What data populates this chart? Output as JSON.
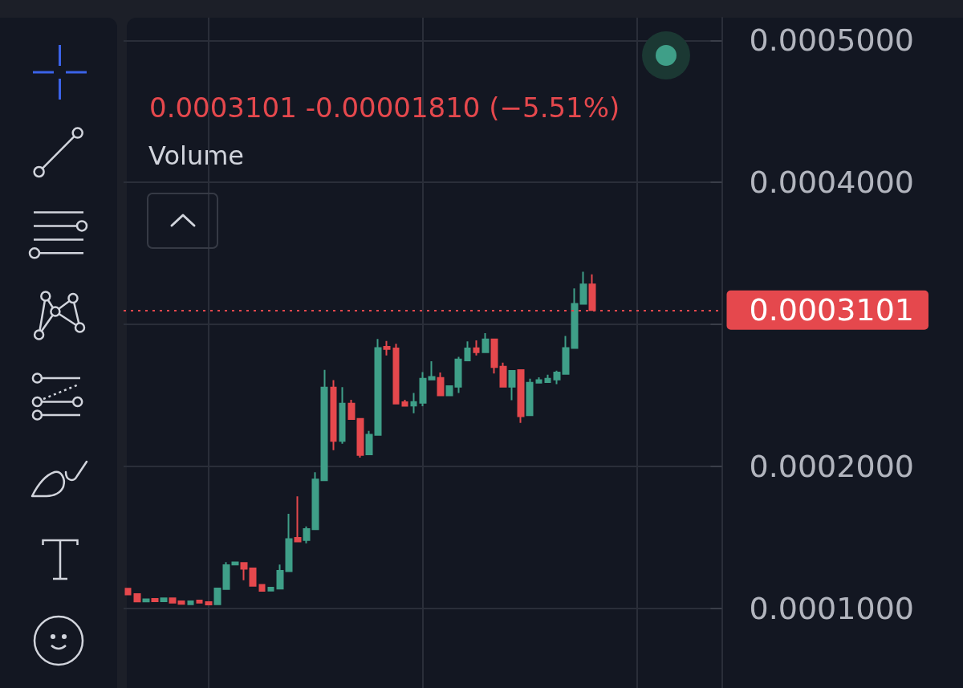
{
  "chart_data": {
    "type": "candlestick",
    "subtitle": "0.0003101 -0.00001810 (−5.51%)",
    "annotations": [
      "Volume"
    ],
    "categories": [
      null,
      null,
      null,
      null,
      null,
      null,
      null,
      null,
      null,
      null,
      null,
      null,
      null,
      null,
      null,
      null,
      null,
      null,
      null,
      null,
      null,
      null,
      null,
      null,
      null,
      null,
      null,
      null,
      null,
      null,
      null,
      null,
      null,
      null,
      null,
      null,
      null,
      null,
      null,
      null,
      null,
      null,
      null,
      null,
      null,
      null,
      null,
      null,
      null,
      null,
      null,
      null,
      null,
      null,
      null,
      null,
      null,
      null,
      null,
      null,
      null,
      null,
      null,
      null,
      null,
      null,
      null
    ],
    "ohlc": [
      [
        0.000114,
        0.000114,
        0.0001098,
        0.0001098
      ],
      [
        0.0001102,
        0.0001102,
        0.0001044,
        0.0001049
      ],
      [
        0.0001049,
        0.0001068,
        0.0001047,
        0.0001064
      ],
      [
        0.0001068,
        0.0001073,
        0.0001051,
        0.0001051
      ],
      [
        0.0001051,
        0.0001072,
        0.0001051,
        0.0001072
      ],
      [
        0.0001072,
        0.0001072,
        0.0001038,
        0.000104
      ],
      [
        0.0001051,
        0.0001051,
        0.0001026,
        0.0001032
      ],
      [
        0.000103,
        0.0001051,
        0.000103,
        0.0001051
      ],
      [
        0.0001056,
        0.0001056,
        0.000104,
        0.000104
      ],
      [
        0.0001045,
        0.0001045,
        0.0001028,
        0.0001028
      ],
      [
        0.000103,
        0.0001141,
        0.000103,
        0.0001141
      ],
      [
        0.0001136,
        0.0001326,
        0.0001136,
        0.0001305
      ],
      [
        0.0001309,
        0.0001324,
        0.0001309,
        0.0001324
      ],
      [
        0.000132,
        0.000132,
        0.0001199,
        0.0001279
      ],
      [
        0.0001282,
        0.0001282,
        0.000116,
        0.000116
      ],
      [
        0.0001166,
        0.0001166,
        0.0001124,
        0.0001124
      ],
      [
        0.0001126,
        0.0001147,
        0.0001126,
        0.0001147
      ],
      [
        0.000114,
        0.0001309,
        0.000114,
        0.0001266
      ],
      [
        0.0001262,
        0.0001667,
        0.0001262,
        0.0001488
      ],
      [
        0.0001497,
        0.0001789,
        0.0001469,
        0.0001471
      ],
      [
        0.0001482,
        0.0001578,
        0.0001459,
        0.0001559
      ],
      [
        0.0001558,
        0.0001959,
        0.0001558,
        0.0001908
      ],
      [
        0.0001902,
        0.000268,
        0.0001902,
        0.0002555
      ],
      [
        0.0002555,
        0.0002608,
        0.0002115,
        0.0002179
      ],
      [
        0.0002179,
        0.0002559,
        0.000216,
        0.0002442
      ],
      [
        0.0002442,
        0.0002469,
        0.0002333,
        0.0002333
      ],
      [
        0.0002335,
        0.0002335,
        0.0002062,
        0.0002081
      ],
      [
        0.0002085,
        0.000225,
        0.0002085,
        0.0002224
      ],
      [
        0.0002222,
        0.0002898,
        0.0002222,
        0.0002834
      ],
      [
        0.0002842,
        0.0002883,
        0.0002781,
        0.0002827
      ],
      [
        0.0002831,
        0.0002864,
        0.0002442,
        0.0002442
      ],
      [
        0.0002452,
        0.0002469,
        0.0002427,
        0.0002427
      ],
      [
        0.0002428,
        0.0002518,
        0.0002375,
        0.0002454
      ],
      [
        0.0002448,
        0.0002665,
        0.0002424,
        0.0002618
      ],
      [
        0.0002612,
        0.000274,
        0.0002612,
        0.0002631
      ],
      [
        0.0002623,
        0.0002661,
        0.0002501,
        0.0002501
      ],
      [
        0.0002501,
        0.0002565,
        0.0002501,
        0.0002565
      ],
      [
        0.0002561,
        0.0002772,
        0.0002518,
        0.0002753
      ],
      [
        0.0002746,
        0.000288,
        0.0002746,
        0.0002831
      ],
      [
        0.0002832,
        0.0002887,
        0.0002781,
        0.0002804
      ],
      [
        0.0002804,
        0.0002938,
        0.0002804,
        0.0002894
      ],
      [
        0.0002894,
        0.0002894,
        0.0002655,
        0.0002699
      ],
      [
        0.0002702,
        0.0002731,
        0.0002561,
        0.0002561
      ],
      [
        0.0002561,
        0.0002673,
        0.0002467,
        0.0002673
      ],
      [
        0.0002678,
        0.0002678,
        0.0002307,
        0.0002354
      ],
      [
        0.000236,
        0.0002617,
        0.000236,
        0.0002589
      ],
      [
        0.0002589,
        0.0002627,
        0.0002589,
        0.0002608
      ],
      [
        0.0002593,
        0.0002646,
        0.0002593,
        0.0002617
      ],
      [
        0.0002612,
        0.0002674,
        0.000258,
        0.0002661
      ],
      [
        0.0002651,
        0.0002919,
        0.0002651,
        0.0002834
      ],
      [
        0.0002834,
        0.0003253,
        0.0002834,
        0.0003145
      ],
      [
        0.0003145,
        0.0003371,
        0.0003145,
        0.0003282
      ],
      [
        0.0003282,
        0.0003352,
        0.0003101,
        0.0003101
      ],
      null,
      null,
      null,
      null,
      null,
      null,
      null,
      null,
      null,
      null,
      null,
      null,
      null,
      null
    ],
    "colors": [
      "#e5484d",
      "#e5484d",
      "#3f9f88",
      "#e5484d",
      "#3f9f88",
      "#e5484d",
      "#e5484d",
      "#3f9f88",
      "#e5484d",
      "#e5484d",
      "#3f9f88",
      "#3f9f88",
      "#3f9f88",
      "#e5484d",
      "#e5484d",
      "#e5484d",
      "#3f9f88",
      "#3f9f88",
      "#3f9f88",
      "#e5484d",
      "#3f9f88",
      "#3f9f88",
      "#3f9f88",
      "#e5484d",
      "#3f9f88",
      "#e5484d",
      "#e5484d",
      "#3f9f88",
      "#3f9f88",
      "#e5484d",
      "#e5484d",
      "#e5484d",
      "#3f9f88",
      "#3f9f88",
      "#3f9f88",
      "#e5484d",
      "#3f9f88",
      "#3f9f88",
      "#3f9f88",
      "#e5484d",
      "#3f9f88",
      "#e5484d",
      "#e5484d",
      "#3f9f88",
      "#e5484d",
      "#3f9f88",
      "#3f9f88",
      "#3f9f88",
      "#3f9f88",
      "#3f9f88",
      "#3f9f88",
      "#3f9f88",
      "#e5484d",
      null,
      null,
      null,
      null,
      null,
      null,
      null,
      null,
      null,
      null,
      null,
      null,
      null,
      null
    ],
    "ylim": [
      4.4e-05,
      0.000516
    ],
    "yticks": [
      {
        "value": 0.0001,
        "label": "0.0001000"
      },
      {
        "value": 0.0002,
        "label": "0.0002000"
      },
      {
        "value": 0.0003,
        "label": null
      },
      {
        "value": 0.0004,
        "label": "0.0004000"
      },
      {
        "value": 0.0005,
        "label": "0.0005000"
      }
    ],
    "ref_lines": [
      {
        "axis": "y",
        "value": 0.0003101,
        "label": "0.0003101",
        "color": "#e5484d",
        "line_style": "dotted"
      }
    ],
    "grid": true,
    "tick_labels": "y"
  }
}
